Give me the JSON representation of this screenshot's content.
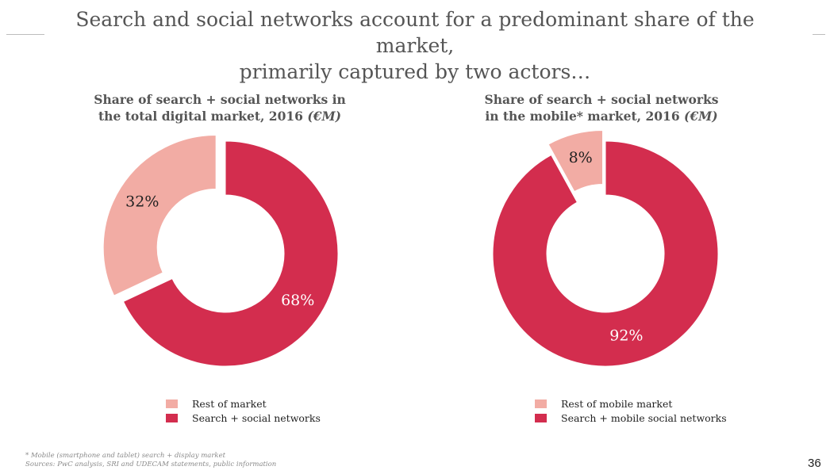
{
  "slide": {
    "title_line1": "Search and social networks account for a predominant share of the market,",
    "title_line2": "primarily captured by two actors…",
    "footnote": "* Mobile (smartphone and tablet) search + display market",
    "sources": "Sources: PwC analysis, SRI and UDECAM statements, public information",
    "page_number": "36"
  },
  "colors": {
    "rest": "#f2aca4",
    "search_social": "#d32d4e",
    "text": "#555555"
  },
  "chart_data": [
    {
      "type": "pie",
      "variant": "donut",
      "title_line1": "Share of search + social networks in",
      "title_line2": "the total digital market, 2016",
      "title_unit": "(€M)",
      "series": [
        {
          "name": "Rest of market",
          "value": 32,
          "label": "32%",
          "color": "#f2aca4",
          "exploded": true
        },
        {
          "name": "Search + social networks",
          "value": 68,
          "label": "68%",
          "color": "#d32d4e",
          "exploded": false
        }
      ]
    },
    {
      "type": "pie",
      "variant": "donut",
      "title_line1": "Share of search + social networks",
      "title_line2": "in the mobile* market, 2016",
      "title_unit": "(€M)",
      "series": [
        {
          "name": "Rest of mobile market",
          "value": 8,
          "label": "8%",
          "color": "#f2aca4",
          "exploded": true
        },
        {
          "name": "Search + mobile social networks",
          "value": 92,
          "label": "92%",
          "color": "#d32d4e",
          "exploded": false
        }
      ]
    }
  ]
}
